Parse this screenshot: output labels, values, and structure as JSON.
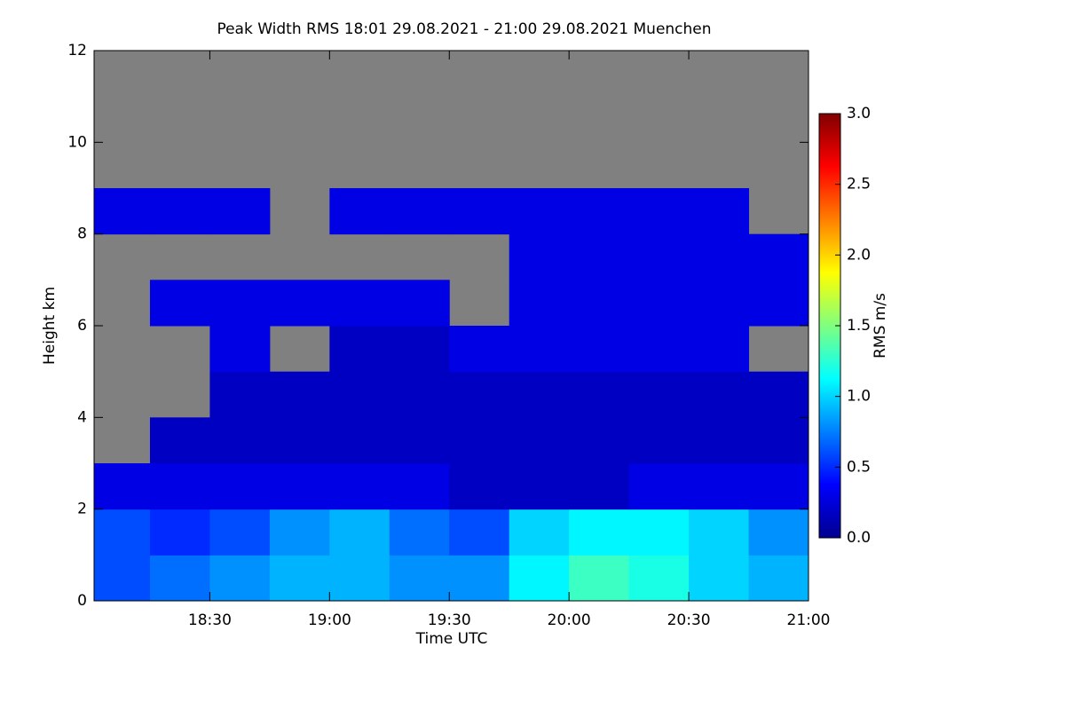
{
  "chart_data": {
    "type": "heatmap",
    "title": "Peak Width RMS   18:01 29.08.2021 - 21:00 29.08.2021 Muenchen",
    "xlabel": "Time UTC",
    "ylabel": "Height km",
    "colorbar_label": "RMS m/s",
    "xlim": [
      18.0167,
      21.0
    ],
    "xticks": [
      {
        "value": 18.5,
        "label": "18:30"
      },
      {
        "value": 19.0,
        "label": "19:00"
      },
      {
        "value": 19.5,
        "label": "19:30"
      },
      {
        "value": 20.0,
        "label": "20:00"
      },
      {
        "value": 20.5,
        "label": "20:30"
      },
      {
        "value": 21.0,
        "label": "21:00"
      }
    ],
    "ylim": [
      0,
      12
    ],
    "yticks": [
      0,
      2,
      4,
      6,
      8,
      10,
      12
    ],
    "zlim": [
      0,
      3
    ],
    "zticks": [
      {
        "value": 0,
        "label": "0.0"
      },
      0.5,
      {
        "value": 1,
        "label": "1.0"
      },
      1.5,
      {
        "value": 2,
        "label": "2.0"
      },
      2.5,
      {
        "value": 3,
        "label": "3.0"
      }
    ],
    "colormap": "jet",
    "missing_color": "#808080",
    "x_bins": [
      18.0167,
      18.25,
      18.5,
      18.75,
      19.0,
      19.25,
      19.5,
      19.75,
      20.0,
      20.25,
      20.5,
      20.75,
      21.0
    ],
    "y_bins": [
      0,
      1,
      2,
      3,
      4,
      5,
      6,
      7,
      8,
      9,
      10,
      11,
      12
    ],
    "values": [
      [
        0.6,
        0.7,
        0.8,
        0.9,
        0.9,
        0.8,
        0.8,
        1.1,
        1.3,
        1.2,
        1.0,
        0.9
      ],
      [
        0.6,
        0.5,
        0.6,
        0.8,
        0.9,
        0.7,
        0.6,
        1.0,
        1.1,
        1.1,
        1.0,
        0.8
      ],
      [
        0.3,
        0.3,
        0.3,
        0.3,
        0.3,
        0.3,
        0.2,
        0.2,
        0.2,
        0.3,
        0.3,
        0.3
      ],
      [
        null,
        0.2,
        0.2,
        0.2,
        0.2,
        0.2,
        0.2,
        0.2,
        0.2,
        0.2,
        0.2,
        0.2
      ],
      [
        null,
        null,
        0.2,
        0.2,
        0.2,
        0.2,
        0.2,
        0.2,
        0.2,
        0.2,
        0.2,
        0.2
      ],
      [
        null,
        null,
        0.3,
        null,
        0.2,
        0.2,
        0.3,
        0.3,
        0.3,
        0.3,
        0.3,
        null
      ],
      [
        null,
        0.3,
        0.3,
        0.3,
        0.3,
        0.3,
        null,
        0.3,
        0.3,
        0.3,
        0.3,
        0.3
      ],
      [
        null,
        null,
        null,
        null,
        null,
        null,
        null,
        0.3,
        0.3,
        0.3,
        0.3,
        0.3
      ],
      [
        0.3,
        0.3,
        0.3,
        null,
        0.3,
        0.3,
        0.3,
        0.3,
        0.3,
        0.3,
        0.3,
        null
      ],
      [
        null,
        null,
        null,
        null,
        null,
        null,
        null,
        null,
        null,
        null,
        null,
        null
      ],
      [
        null,
        null,
        null,
        null,
        null,
        null,
        null,
        null,
        null,
        null,
        null,
        null
      ],
      [
        null,
        null,
        null,
        null,
        null,
        null,
        null,
        null,
        null,
        null,
        null,
        null
      ]
    ]
  }
}
